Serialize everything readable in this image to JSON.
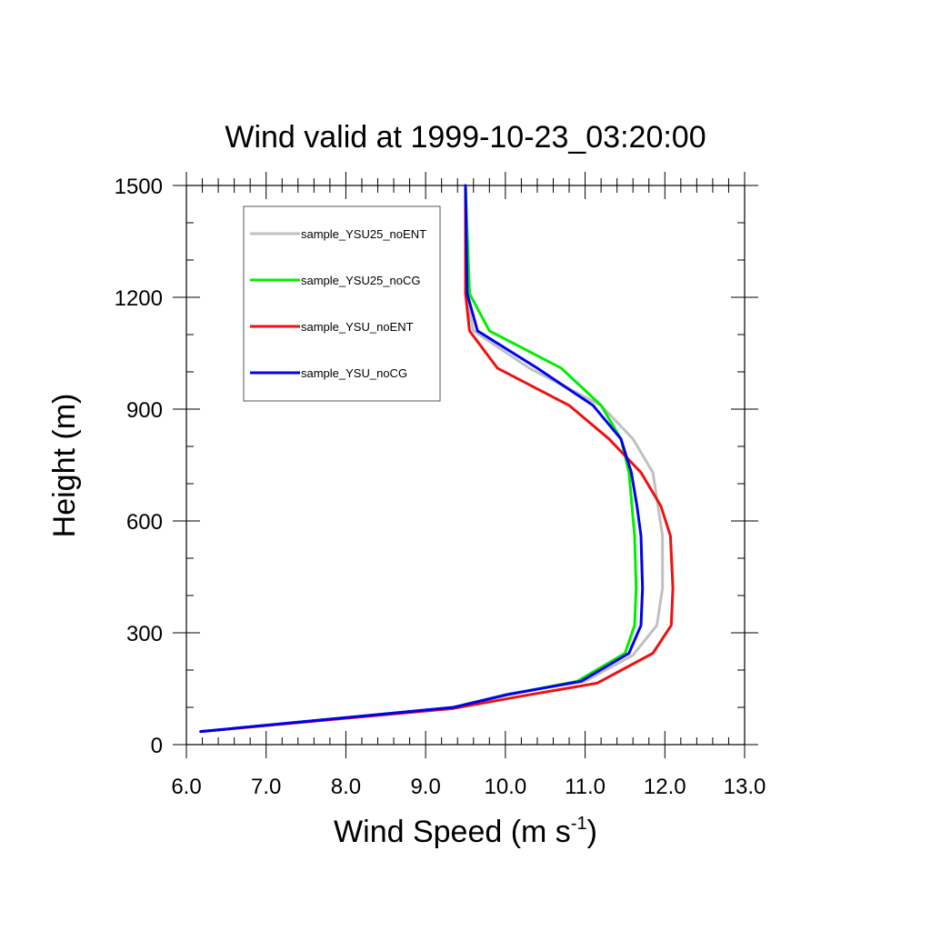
{
  "chart_data": {
    "type": "line",
    "title": "Wind valid at 1999-10-23_03:20:00",
    "xlabel": "Wind Speed (m s",
    "xlabel_sup": "-1",
    "xlabel_end": ")",
    "ylabel": "Height (m)",
    "xlim": [
      6.0,
      13.0
    ],
    "ylim": [
      0,
      1500
    ],
    "x_ticks": [
      6.0,
      7.0,
      8.0,
      9.0,
      10.0,
      11.0,
      12.0,
      13.0
    ],
    "x_tick_labels": [
      "6.0",
      "7.0",
      "8.0",
      "9.0",
      "10.0",
      "11.0",
      "12.0",
      "13.0"
    ],
    "y_ticks": [
      0,
      300,
      600,
      900,
      1200,
      1500
    ],
    "y_tick_labels": [
      "0",
      "300",
      "600",
      "900",
      "1200",
      "1500"
    ],
    "x_minor_step": 0.2,
    "y_minor_step": 100,
    "grid": false,
    "legend_position": "top-left",
    "series": [
      {
        "name": "sample_YSU25_noENT",
        "color": "#c0c0c0",
        "points": [
          [
            6.18,
            35
          ],
          [
            9.35,
            100
          ],
          [
            10.0,
            135
          ],
          [
            11.0,
            170
          ],
          [
            11.6,
            240
          ],
          [
            11.9,
            320
          ],
          [
            11.97,
            420
          ],
          [
            11.97,
            560
          ],
          [
            11.85,
            730
          ],
          [
            11.6,
            820
          ],
          [
            11.2,
            910
          ],
          [
            10.3,
            1010
          ],
          [
            9.6,
            1110
          ],
          [
            9.5,
            1210
          ],
          [
            9.5,
            1500
          ]
        ]
      },
      {
        "name": "sample_YSU25_noCG",
        "color": "#00ee00",
        "points": [
          [
            6.18,
            35
          ],
          [
            9.35,
            100
          ],
          [
            10.05,
            135
          ],
          [
            10.9,
            170
          ],
          [
            11.5,
            245
          ],
          [
            11.62,
            320
          ],
          [
            11.64,
            420
          ],
          [
            11.62,
            560
          ],
          [
            11.55,
            730
          ],
          [
            11.45,
            820
          ],
          [
            11.2,
            910
          ],
          [
            10.7,
            1010
          ],
          [
            9.8,
            1110
          ],
          [
            9.55,
            1210
          ],
          [
            9.5,
            1500
          ]
        ]
      },
      {
        "name": "sample_YSU_noENT",
        "color": "#ee1111",
        "points": [
          [
            6.18,
            35
          ],
          [
            9.35,
            97
          ],
          [
            10.2,
            130
          ],
          [
            11.15,
            165
          ],
          [
            11.85,
            245
          ],
          [
            12.08,
            320
          ],
          [
            12.1,
            420
          ],
          [
            12.07,
            560
          ],
          [
            11.95,
            640
          ],
          [
            11.7,
            730
          ],
          [
            11.3,
            820
          ],
          [
            10.8,
            910
          ],
          [
            9.9,
            1010
          ],
          [
            9.55,
            1110
          ],
          [
            9.5,
            1210
          ],
          [
            9.5,
            1500
          ]
        ]
      },
      {
        "name": "sample_YSU_noCG",
        "color": "#0000ee",
        "points": [
          [
            6.18,
            35
          ],
          [
            9.35,
            100
          ],
          [
            10.05,
            135
          ],
          [
            10.95,
            170
          ],
          [
            11.55,
            245
          ],
          [
            11.7,
            320
          ],
          [
            11.72,
            420
          ],
          [
            11.7,
            560
          ],
          [
            11.65,
            640
          ],
          [
            11.58,
            730
          ],
          [
            11.45,
            820
          ],
          [
            11.1,
            910
          ],
          [
            10.4,
            1010
          ],
          [
            9.65,
            1110
          ],
          [
            9.52,
            1210
          ],
          [
            9.5,
            1500
          ]
        ]
      }
    ]
  }
}
